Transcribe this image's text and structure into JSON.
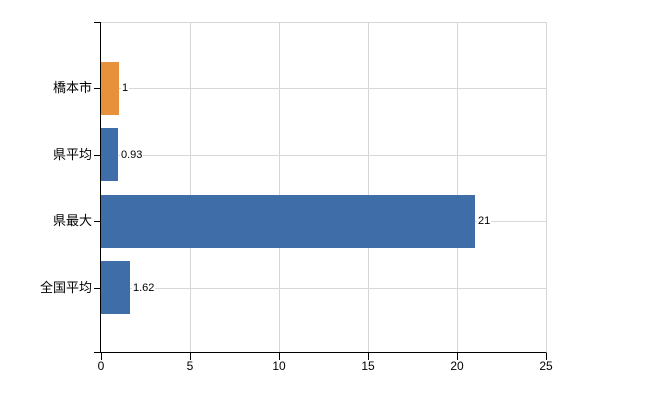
{
  "chart_data": {
    "type": "bar",
    "orientation": "horizontal",
    "title": "",
    "categories": [
      "橋本市",
      "県平均",
      "県最大",
      "全国平均"
    ],
    "values": [
      1,
      0.93,
      21,
      1.62
    ],
    "value_labels": [
      "1",
      "0.93",
      "21",
      "1.62"
    ],
    "bar_colors": [
      "#E8913C",
      "#3E6DA8",
      "#3E6DA8",
      "#3E6DA8"
    ],
    "highlight_color": "#E8913C",
    "default_color": "#3E6DA8",
    "xlim": [
      0,
      25
    ],
    "x_ticks": [
      0,
      5,
      10,
      15,
      20,
      25
    ],
    "x_tick_labels": [
      "0",
      "5",
      "10",
      "15",
      "20",
      "25"
    ],
    "grid": true,
    "legend_position": "none",
    "xlabel": "",
    "ylabel": ""
  },
  "colors": {
    "axis": "#000000",
    "gridline": "#d6d6d6",
    "text": "#000000",
    "background": "#ffffff"
  }
}
